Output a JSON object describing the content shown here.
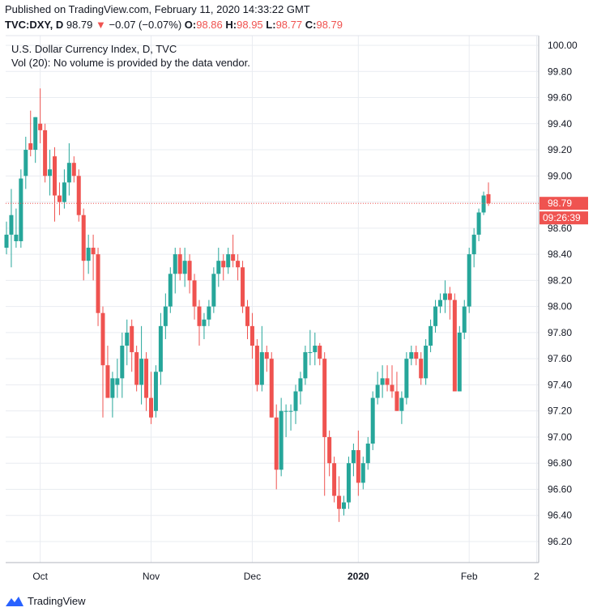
{
  "header": {
    "published": "Published on TradingView.com, February 11, 2020 14:33:22 GMT",
    "symbol": "TVC:DXY, D",
    "last": "98.79",
    "change_arrow": "▼",
    "change": "−0.07 (−0.07%)",
    "o_label": "O:",
    "o_val": "98.86",
    "h_label": "H:",
    "h_val": "98.95",
    "l_label": "L:",
    "l_val": "98.77",
    "c_label": "C:",
    "c_val": "98.79"
  },
  "legend": {
    "line1": "U.S. Dollar Currency Index, D, TVC",
    "line2": "Vol (20): No volume is provided by the data vendor."
  },
  "price_label": "98.79",
  "countdown": "09:26:39",
  "footer": {
    "brand": "TradingView",
    "logo_icon": "tradingview-logo-icon"
  },
  "colors": {
    "up": "#26a69a",
    "down": "#ef5350",
    "grid": "#e9ecf1"
  },
  "chart_data": {
    "type": "candlestick",
    "ylim": [
      96.0,
      100.1
    ],
    "y_ticks": [
      "96.20",
      "96.40",
      "96.60",
      "96.80",
      "97.00",
      "97.20",
      "97.40",
      "97.60",
      "97.80",
      "98.00",
      "98.20",
      "98.40",
      "98.60",
      "98.80",
      "99.00",
      "99.20",
      "99.40",
      "99.60",
      "99.80",
      "100.00"
    ],
    "x_ticks": [
      {
        "label": "Oct",
        "i": 7
      },
      {
        "label": "Nov",
        "i": 30
      },
      {
        "label": "Dec",
        "i": 51
      },
      {
        "label": "2020",
        "i": 73
      },
      {
        "label": "Feb",
        "i": 96
      },
      {
        "label": "2",
        "i": 110
      }
    ],
    "last_price": 98.79,
    "candles": [
      [
        98.45,
        98.65,
        98.4,
        98.55
      ],
      [
        98.55,
        98.9,
        98.3,
        98.7
      ],
      [
        98.5,
        98.75,
        98.45,
        98.55
      ],
      [
        98.5,
        99.05,
        98.45,
        98.98
      ],
      [
        99.0,
        99.3,
        98.9,
        99.2
      ],
      [
        99.25,
        99.5,
        99.15,
        99.2
      ],
      [
        99.2,
        99.45,
        99.1,
        99.45
      ],
      [
        99.4,
        99.67,
        99.25,
        99.35
      ],
      [
        99.35,
        99.4,
        98.95,
        99.0
      ],
      [
        99.0,
        99.2,
        98.85,
        99.05
      ],
      [
        99.15,
        99.22,
        98.65,
        98.85
      ],
      [
        98.85,
        98.95,
        98.7,
        98.8
      ],
      [
        98.8,
        99.05,
        98.75,
        98.95
      ],
      [
        98.95,
        99.25,
        98.85,
        99.1
      ],
      [
        99.1,
        99.15,
        98.95,
        99.0
      ],
      [
        99.0,
        99.05,
        98.65,
        98.7
      ],
      [
        98.7,
        98.75,
        98.2,
        98.35
      ],
      [
        98.35,
        98.55,
        98.25,
        98.45
      ],
      [
        98.45,
        98.55,
        98.2,
        98.4
      ],
      [
        98.4,
        98.45,
        97.85,
        97.95
      ],
      [
        97.95,
        98.0,
        97.15,
        97.55
      ],
      [
        97.55,
        97.7,
        97.3,
        97.3
      ],
      [
        97.3,
        97.5,
        97.15,
        97.45
      ],
      [
        97.4,
        97.6,
        97.3,
        97.45
      ],
      [
        97.45,
        97.8,
        97.3,
        97.7
      ],
      [
        97.7,
        97.9,
        97.55,
        97.8
      ],
      [
        97.85,
        97.9,
        97.5,
        97.65
      ],
      [
        97.65,
        97.7,
        97.35,
        97.4
      ],
      [
        97.4,
        97.85,
        97.25,
        97.6
      ],
      [
        97.6,
        97.65,
        97.2,
        97.3
      ],
      [
        97.3,
        97.5,
        97.1,
        97.15
      ],
      [
        97.2,
        97.55,
        97.15,
        97.5
      ],
      [
        97.5,
        97.95,
        97.4,
        97.85
      ],
      [
        97.85,
        98.1,
        97.75,
        98.0
      ],
      [
        98.0,
        98.3,
        97.95,
        98.25
      ],
      [
        98.25,
        98.45,
        98.1,
        98.4
      ],
      [
        98.4,
        98.45,
        98.2,
        98.25
      ],
      [
        98.25,
        98.45,
        98.15,
        98.35
      ],
      [
        98.35,
        98.4,
        98.1,
        98.2
      ],
      [
        98.2,
        98.25,
        97.9,
        98.0
      ],
      [
        98.0,
        98.05,
        97.7,
        97.85
      ],
      [
        97.85,
        97.95,
        97.75,
        97.9
      ],
      [
        97.9,
        98.05,
        97.85,
        98.0
      ],
      [
        98.0,
        98.3,
        97.95,
        98.25
      ],
      [
        98.25,
        98.45,
        98.15,
        98.35
      ],
      [
        98.35,
        98.4,
        98.2,
        98.3
      ],
      [
        98.3,
        98.45,
        98.25,
        98.4
      ],
      [
        98.4,
        98.55,
        98.3,
        98.35
      ],
      [
        98.35,
        98.4,
        98.2,
        98.3
      ],
      [
        98.3,
        98.35,
        97.95,
        98.0
      ],
      [
        98.0,
        98.05,
        97.75,
        97.85
      ],
      [
        97.85,
        97.95,
        97.6,
        97.7
      ],
      [
        97.7,
        97.75,
        97.35,
        97.4
      ],
      [
        97.4,
        97.85,
        97.35,
        97.65
      ],
      [
        97.65,
        97.7,
        97.5,
        97.6
      ],
      [
        97.6,
        97.65,
        97.15,
        97.15
      ],
      [
        97.15,
        97.25,
        96.6,
        96.75
      ],
      [
        96.75,
        97.3,
        96.7,
        97.2
      ],
      [
        97.2,
        97.25,
        97.0,
        97.2
      ],
      [
        97.2,
        97.25,
        97.05,
        97.2
      ],
      [
        97.2,
        97.4,
        97.1,
        97.35
      ],
      [
        97.35,
        97.5,
        97.25,
        97.45
      ],
      [
        97.45,
        97.7,
        97.4,
        97.65
      ],
      [
        97.65,
        97.82,
        97.55,
        97.65
      ],
      [
        97.65,
        97.8,
        97.55,
        97.7
      ],
      [
        97.7,
        97.72,
        97.55,
        97.6
      ],
      [
        97.6,
        97.65,
        96.55,
        97.0
      ],
      [
        97.0,
        97.05,
        96.7,
        96.8
      ],
      [
        96.8,
        96.85,
        96.5,
        96.55
      ],
      [
        96.55,
        96.7,
        96.35,
        96.45
      ],
      [
        96.45,
        96.55,
        96.4,
        96.5
      ],
      [
        96.5,
        96.85,
        96.45,
        96.8
      ],
      [
        96.8,
        96.95,
        96.7,
        96.9
      ],
      [
        96.9,
        97.05,
        96.55,
        96.65
      ],
      [
        96.65,
        96.85,
        96.6,
        96.8
      ],
      [
        96.8,
        97.0,
        96.75,
        96.95
      ],
      [
        96.95,
        97.35,
        96.9,
        97.3
      ],
      [
        97.3,
        97.5,
        97.25,
        97.4
      ],
      [
        97.4,
        97.55,
        97.3,
        97.45
      ],
      [
        97.45,
        97.55,
        97.35,
        97.4
      ],
      [
        97.4,
        97.55,
        97.3,
        97.35
      ],
      [
        97.35,
        97.5,
        97.2,
        97.2
      ],
      [
        97.2,
        97.35,
        97.1,
        97.3
      ],
      [
        97.3,
        97.65,
        97.25,
        97.6
      ],
      [
        97.6,
        97.7,
        97.55,
        97.65
      ],
      [
        97.65,
        97.7,
        97.55,
        97.6
      ],
      [
        97.6,
        97.65,
        97.4,
        97.45
      ],
      [
        97.45,
        97.75,
        97.4,
        97.7
      ],
      [
        97.7,
        97.9,
        97.65,
        97.85
      ],
      [
        97.85,
        98.05,
        97.8,
        98.0
      ],
      [
        98.0,
        98.1,
        97.95,
        98.05
      ],
      [
        98.05,
        98.2,
        97.95,
        98.1
      ],
      [
        98.1,
        98.15,
        97.9,
        98.05
      ],
      [
        98.05,
        98.1,
        97.35,
        97.35
      ],
      [
        97.35,
        97.85,
        97.35,
        97.8
      ],
      [
        97.8,
        98.05,
        97.75,
        98.0
      ],
      [
        98.0,
        98.45,
        97.95,
        98.4
      ],
      [
        98.4,
        98.6,
        98.3,
        98.55
      ],
      [
        98.55,
        98.75,
        98.5,
        98.72
      ],
      [
        98.72,
        98.88,
        98.7,
        98.85
      ],
      [
        98.86,
        98.95,
        98.77,
        98.79
      ]
    ]
  }
}
